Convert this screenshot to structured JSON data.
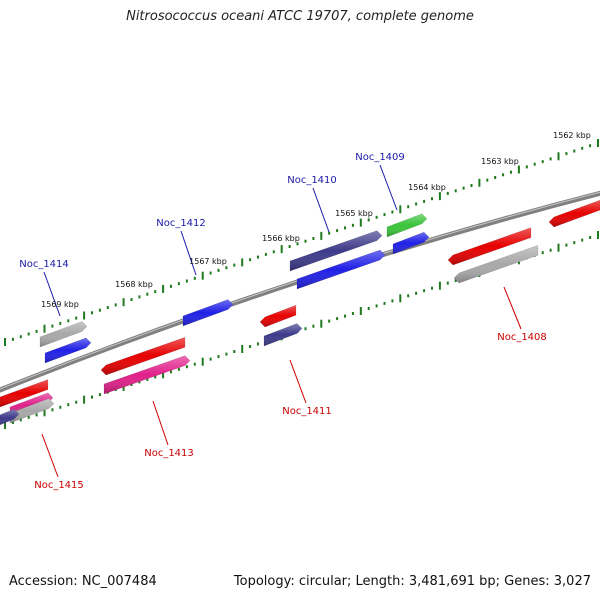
{
  "title": "Nitrosococcus oceani ATCC 19707, complete genome",
  "footer": {
    "accession": "Accession: NC_007484",
    "summary": "Topology: circular; Length: 3,481,691 bp; Genes: 3,027"
  },
  "scale_labels": [
    "1562 kbp",
    "1563 kbp",
    "1564 kbp",
    "1565 kbp",
    "1566 kbp",
    "1567 kbp",
    "1568 kbp",
    "1569 kbp"
  ],
  "forward_genes": [
    {
      "label": "Noc_1409",
      "color": "#2020e6"
    },
    {
      "label": "Noc_1410",
      "color": "#2020e6"
    },
    {
      "label": "Noc_1412",
      "color": "#2020e6"
    },
    {
      "label": "Noc_1414",
      "color": "#2020e6"
    }
  ],
  "reverse_genes": [
    {
      "label": "Noc_1408",
      "color": "#e60000"
    },
    {
      "label": "Noc_1411",
      "color": "#e60000"
    },
    {
      "label": "Noc_1413",
      "color": "#e60000"
    },
    {
      "label": "Noc_1415",
      "color": "#e60000"
    }
  ],
  "colors": {
    "backbone": "#808080",
    "tick": "#1f7a1f",
    "forward_label": "#1a1aaa",
    "reverse_label": "#cc0000",
    "red": "#e60000",
    "blue": "#2020e6",
    "navy": "#3d3a8a",
    "green": "#3ac43a",
    "gray": "#a8a8a8",
    "pink": "#e0208a"
  }
}
